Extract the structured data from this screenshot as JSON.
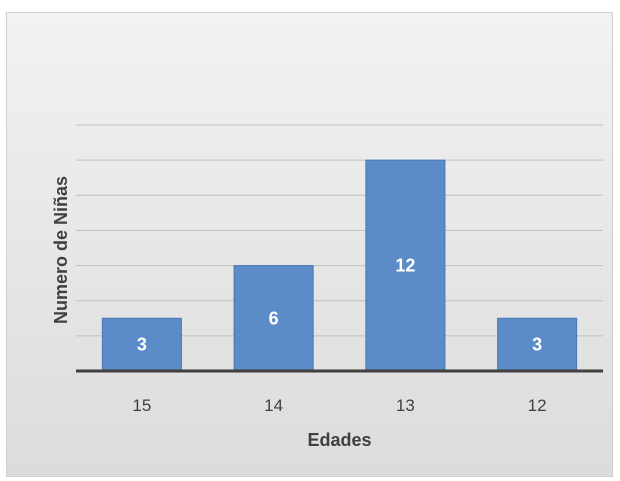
{
  "chart_data": {
    "type": "bar",
    "title": "",
    "xlabel": "Edades",
    "ylabel": "Numero de Niñas",
    "categories": [
      "15",
      "14",
      "13",
      "12"
    ],
    "values": [
      3,
      6,
      12,
      3
    ],
    "data_labels": [
      "3",
      "6",
      "12",
      "3"
    ],
    "ylim": [
      0,
      14
    ],
    "y_step": 2,
    "show_y_tick_labels": false,
    "grid": true,
    "legend": "none",
    "colors": {
      "bar_fill": "#5b8cc8",
      "bar_edge": "#4a78b2",
      "gridline": "#bfbfbf",
      "axis_line": "#404040"
    }
  }
}
